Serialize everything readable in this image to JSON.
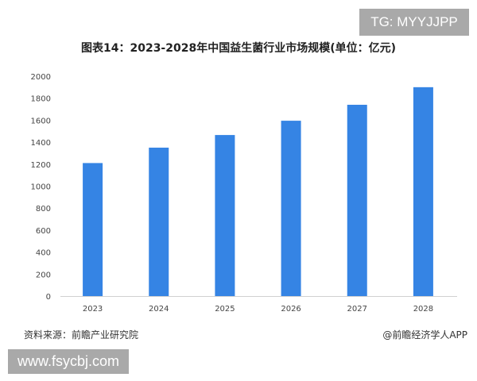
{
  "watermark_tg": "TG: MYYJJPP",
  "watermark_site": "www.fsycbj.com",
  "footer": {
    "source": "资料来源：前瞻产业研究院",
    "credit": "@前瞻经济学人APP"
  },
  "chart_data": {
    "type": "bar",
    "title": "图表14：2023-2028年中国益生菌行业市场规模(单位：亿元)",
    "categories": [
      "2023",
      "2024",
      "2025",
      "2026",
      "2027",
      "2028"
    ],
    "values": [
      1210,
      1350,
      1465,
      1595,
      1740,
      1900
    ],
    "yticks": [
      "0",
      "200",
      "400",
      "600",
      "800",
      "1000",
      "1200",
      "1400",
      "1600",
      "1800",
      "2000"
    ],
    "ylim": [
      0,
      2000
    ],
    "grid": false,
    "bar_color": "#3584e4"
  }
}
